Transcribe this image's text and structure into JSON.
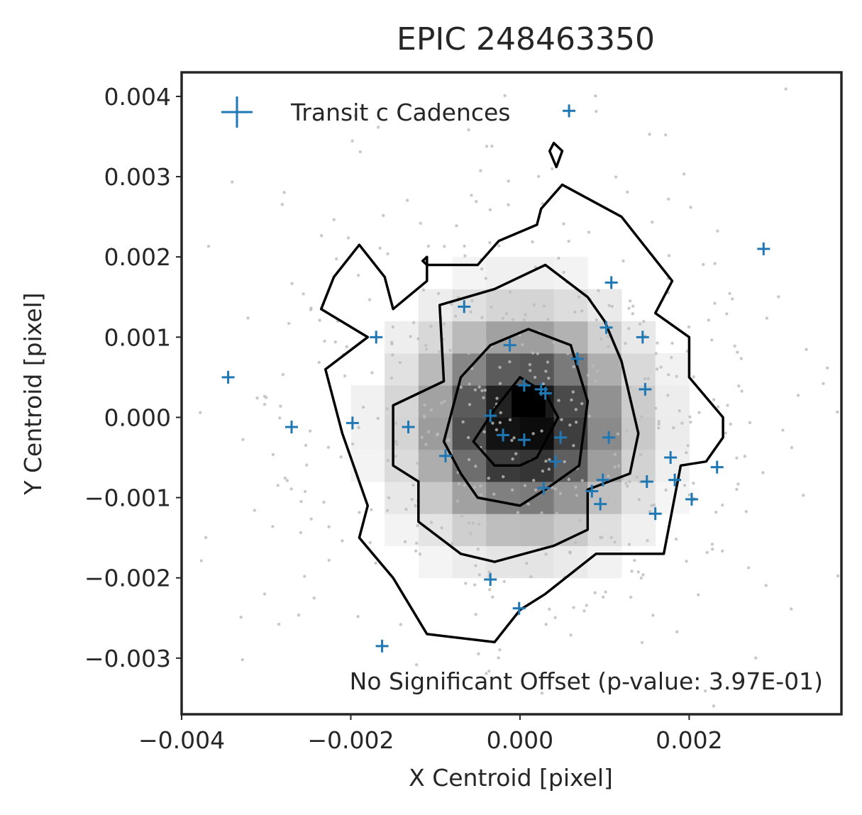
{
  "chart_data": {
    "type": "scatter",
    "title": "EPIC 248463350",
    "xlabel": "X Centroid [pixel]",
    "ylabel": "Y Centroid [pixel]",
    "xlim": [
      -0.004,
      0.0038
    ],
    "ylim": [
      -0.0037,
      0.0043
    ],
    "xticks": [
      -0.004,
      -0.002,
      0.0,
      0.002
    ],
    "yticks": [
      -0.003,
      -0.002,
      -0.001,
      0.0,
      0.001,
      0.002,
      0.003,
      0.004
    ],
    "xtick_labels": [
      "−0.004",
      "−0.002",
      "0.000",
      "0.002"
    ],
    "ytick_labels": [
      "−0.003",
      "−0.002",
      "−0.001",
      "0.000",
      "0.001",
      "0.002",
      "0.003",
      "0.004"
    ],
    "grid": false,
    "legend": {
      "position": "top-left",
      "entries": [
        "Transit c Cadences"
      ]
    },
    "annotation": "No Significant Offset (p-value: 3.97E-01)",
    "colors": {
      "transit": "#1f77b4",
      "background_points": "#bbbbbb",
      "contour": "#000000"
    },
    "transit_points": {
      "x": [
        -0.00345,
        -0.0027,
        -0.00198,
        -0.0017,
        -0.00132,
        -0.00088,
        -0.00066,
        -0.00035,
        -0.00035,
        -0.0002,
        -0.00012,
        5e-05,
        5e-05,
        -1e-05,
        0.00025,
        0.00028,
        0.0003,
        0.00042,
        0.00058,
        0.00068,
        0.00048,
        0.00085,
        0.00095,
        0.00098,
        0.00102,
        0.00105,
        0.00108,
        0.00145,
        0.0015,
        0.00148,
        0.0016,
        0.00178,
        0.00183,
        0.00203,
        0.00233,
        0.00288,
        -0.00163
      ],
      "y": [
        0.0005,
        -0.00012,
        -7e-05,
        0.001,
        -0.00012,
        -0.00048,
        0.00138,
        -0.00202,
        2e-05,
        -0.00022,
        0.0009,
        0.0004,
        -0.00028,
        -0.00238,
        0.00035,
        -0.00088,
        0.0003,
        -0.00055,
        0.00382,
        0.00073,
        -0.00025,
        -0.00092,
        -0.00108,
        -0.00078,
        0.00112,
        -0.00025,
        0.00168,
        0.001,
        -0.0008,
        0.00035,
        -0.0012,
        -0.0005,
        -0.00078,
        -0.00102,
        -0.00062,
        0.0021,
        -0.00285
      ]
    }
  }
}
